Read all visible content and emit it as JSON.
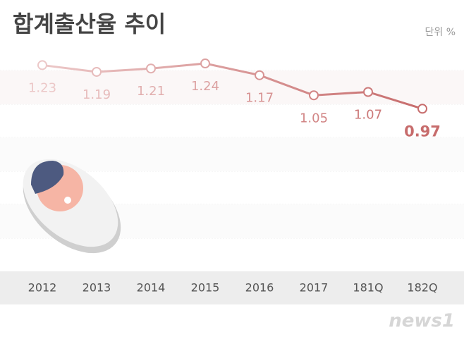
{
  "chart_data": {
    "type": "line",
    "title": "합계출산율 추이",
    "unit_label": "단위 %",
    "categories": [
      "2012",
      "2013",
      "2014",
      "2015",
      "2016",
      "2017",
      "181Q",
      "182Q"
    ],
    "values": [
      1.23,
      1.19,
      1.21,
      1.24,
      1.17,
      1.05,
      1.07,
      0.97
    ],
    "ylim": [
      0,
      1.4
    ],
    "color_start": "#ecc8c8",
    "color_end": "#c76c6c",
    "watermark": "news1"
  }
}
